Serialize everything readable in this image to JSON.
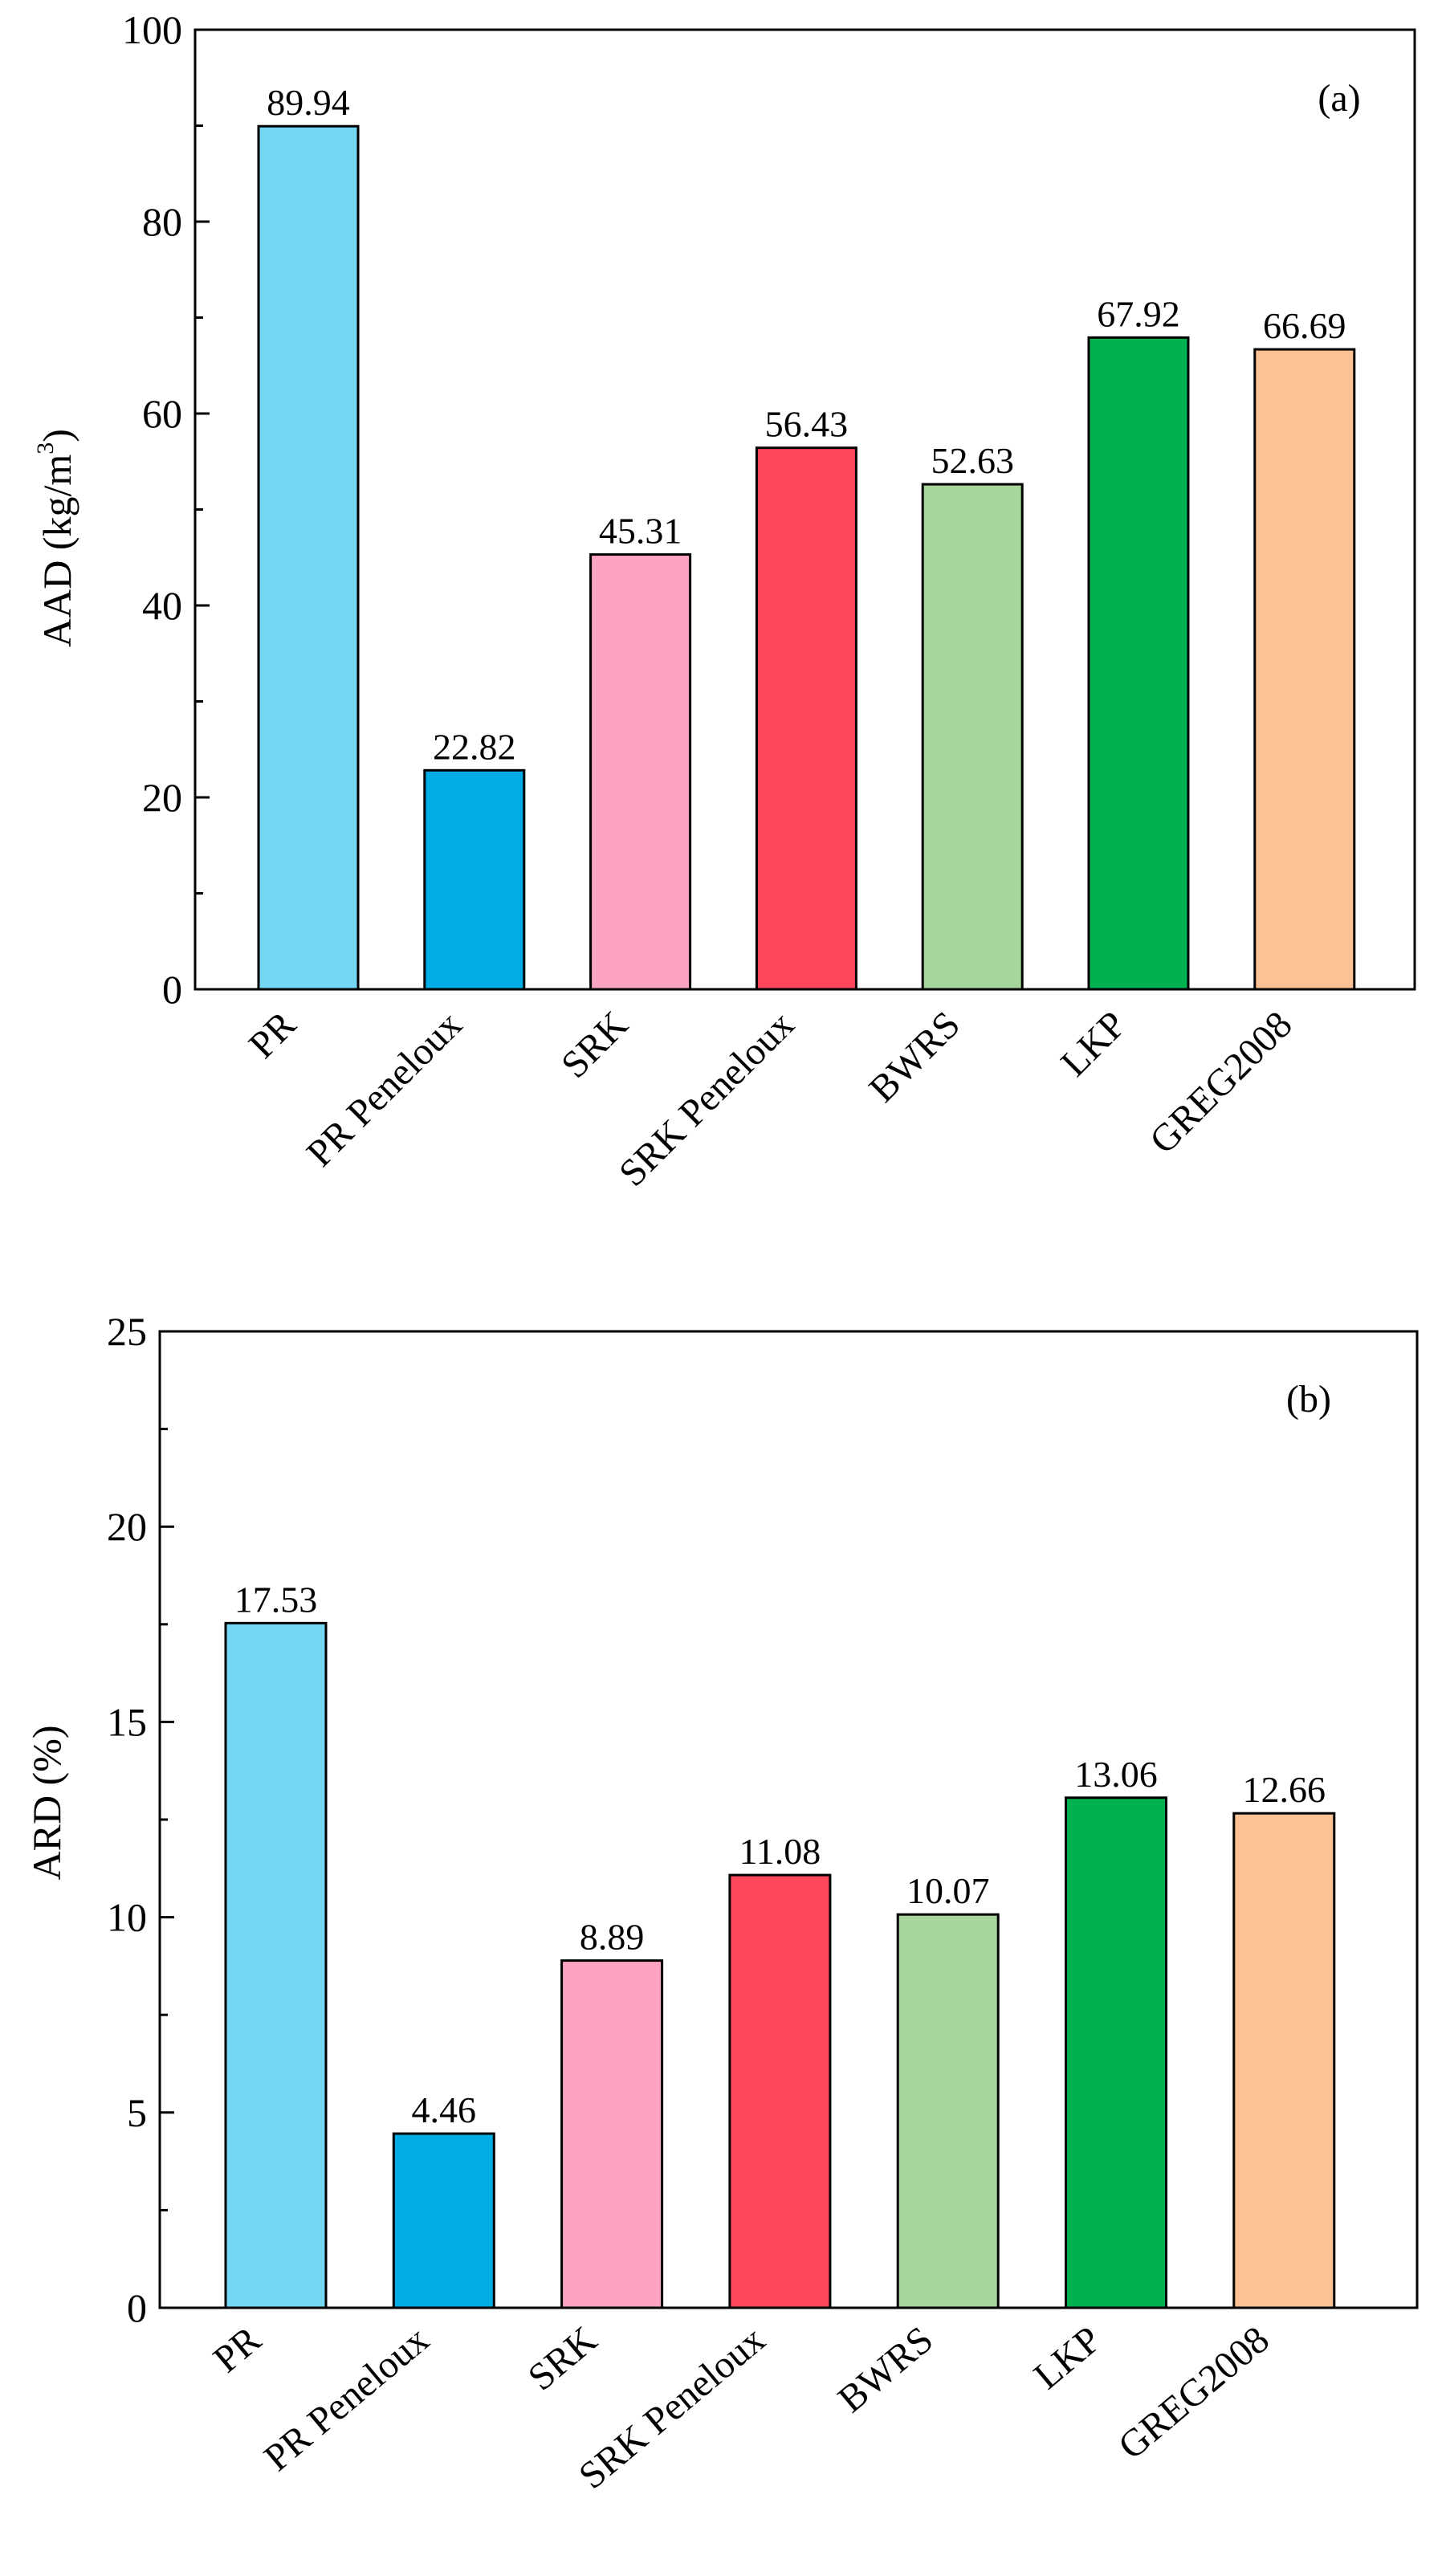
{
  "chart_data": [
    {
      "type": "bar",
      "panel_label": "(a)",
      "categories": [
        "PR",
        "PR Peneloux",
        "SRK",
        "SRK Peneloux",
        "BWRS",
        "LKP",
        "GREG2008"
      ],
      "values": [
        89.94,
        22.82,
        45.31,
        56.43,
        52.63,
        67.92,
        66.69
      ],
      "data_labels": [
        "89.94",
        "22.82",
        "45.31",
        "56.43",
        "52.63",
        "67.92",
        "66.69"
      ],
      "ylabel": "AAD (kg/m",
      "ylabel_superscript": "3",
      "ylabel_suffix": ")",
      "ylim": [
        0,
        100
      ],
      "yticks": [
        0,
        20,
        40,
        60,
        80,
        100
      ],
      "ytick_labels": [
        "0",
        "20",
        "40",
        "60",
        "80",
        "100"
      ],
      "grid": false
    },
    {
      "type": "bar",
      "panel_label": "(b)",
      "categories": [
        "PR",
        "PR Peneloux",
        "SRK",
        "SRK Peneloux",
        "BWRS",
        "LKP",
        "GREG2008"
      ],
      "values": [
        17.53,
        4.46,
        8.89,
        11.08,
        10.07,
        13.06,
        12.66
      ],
      "data_labels": [
        "17.53",
        "4.46",
        "8.89",
        "11.08",
        "10.07",
        "13.06",
        "12.66"
      ],
      "ylabel": "ARD (%)",
      "ylabel_superscript": "",
      "ylabel_suffix": "",
      "ylim": [
        0,
        25
      ],
      "yticks": [
        0,
        5,
        10,
        15,
        20,
        25
      ],
      "ytick_labels": [
        "0",
        "5",
        "10",
        "15",
        "20",
        "25"
      ],
      "grid": false
    }
  ],
  "bar_colors": [
    "#74d7f3",
    "#00ace3",
    "#fda4c4",
    "#fd4659",
    "#a6d69b",
    "#00b14f",
    "#fcc195"
  ]
}
